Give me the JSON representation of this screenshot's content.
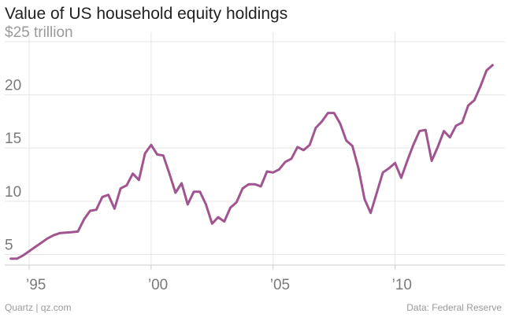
{
  "title": "Value of US household equity holdings",
  "footer": {
    "credit": "Quartz | qz.com",
    "source": "Data: Federal Reserve"
  },
  "colors": {
    "line": "#a05590",
    "grid": "#e6e6e6",
    "axis": "#cccccc",
    "text": "#7a7a7a"
  },
  "chart_data": {
    "type": "line",
    "title": "Value of US household equity holdings",
    "xlabel": "",
    "ylabel": "",
    "grid": true,
    "xlim": [
      1994.0,
      2014.5
    ],
    "ylim": [
      4,
      25
    ],
    "x_ticks": [
      {
        "value": 1995,
        "label": "’95"
      },
      {
        "value": 2000,
        "label": "’00"
      },
      {
        "value": 2005,
        "label": "’05"
      },
      {
        "value": 2010,
        "label": "’10"
      }
    ],
    "y_ticks": [
      {
        "value": 5,
        "label": "5"
      },
      {
        "value": 10,
        "label": "10"
      },
      {
        "value": 15,
        "label": "15"
      },
      {
        "value": 20,
        "label": "20"
      },
      {
        "value": 25,
        "label": "$25 trillion"
      }
    ],
    "series": [
      {
        "x": [
          1994.25,
          1994.5,
          1994.75,
          1995.0,
          1995.25,
          1995.5,
          1995.75,
          1996.0,
          1996.25,
          1996.5,
          1996.75,
          1997.0,
          1997.25,
          1997.5,
          1997.75,
          1998.0,
          1998.25,
          1998.5,
          1998.75,
          1999.0,
          1999.25,
          1999.5,
          1999.75,
          2000.0,
          2000.25,
          2000.5,
          2000.75,
          2001.0,
          2001.25,
          2001.5,
          2001.75,
          2002.0,
          2002.25,
          2002.5,
          2002.75,
          2003.0,
          2003.25,
          2003.5,
          2003.75,
          2004.0,
          2004.25,
          2004.5,
          2004.75,
          2005.0,
          2005.25,
          2005.5,
          2005.75,
          2006.0,
          2006.25,
          2006.5,
          2006.75,
          2007.0,
          2007.25,
          2007.5,
          2007.75,
          2008.0,
          2008.25,
          2008.5,
          2008.75,
          2009.0,
          2009.25,
          2009.5,
          2009.75,
          2010.0,
          2010.25,
          2010.5,
          2010.75,
          2011.0,
          2011.25,
          2011.5,
          2011.75,
          2012.0,
          2012.25,
          2012.5,
          2012.75,
          2013.0,
          2013.25,
          2013.5,
          2013.75,
          2014.0
        ],
        "values": [
          4.6,
          4.6,
          4.9,
          5.3,
          5.7,
          6.1,
          6.5,
          6.8,
          7.0,
          7.05,
          7.1,
          7.15,
          8.3,
          9.1,
          9.2,
          10.4,
          10.6,
          9.3,
          11.2,
          11.5,
          12.6,
          12.0,
          14.5,
          15.3,
          14.4,
          14.3,
          12.6,
          10.8,
          11.7,
          9.7,
          10.9,
          10.9,
          9.7,
          7.9,
          8.5,
          8.1,
          9.4,
          9.9,
          11.2,
          11.6,
          11.6,
          11.4,
          12.8,
          12.7,
          13.0,
          13.7,
          14.0,
          15.1,
          14.8,
          15.3,
          16.9,
          17.5,
          18.3,
          18.3,
          17.3,
          15.7,
          15.2,
          13.1,
          10.2,
          8.9,
          10.8,
          12.7,
          13.1,
          13.6,
          12.2,
          13.8,
          15.3,
          16.6,
          16.7,
          13.8,
          15.1,
          16.6,
          16.0,
          17.1,
          17.4,
          19.0,
          19.5,
          20.8,
          22.3,
          22.8
        ]
      }
    ]
  }
}
